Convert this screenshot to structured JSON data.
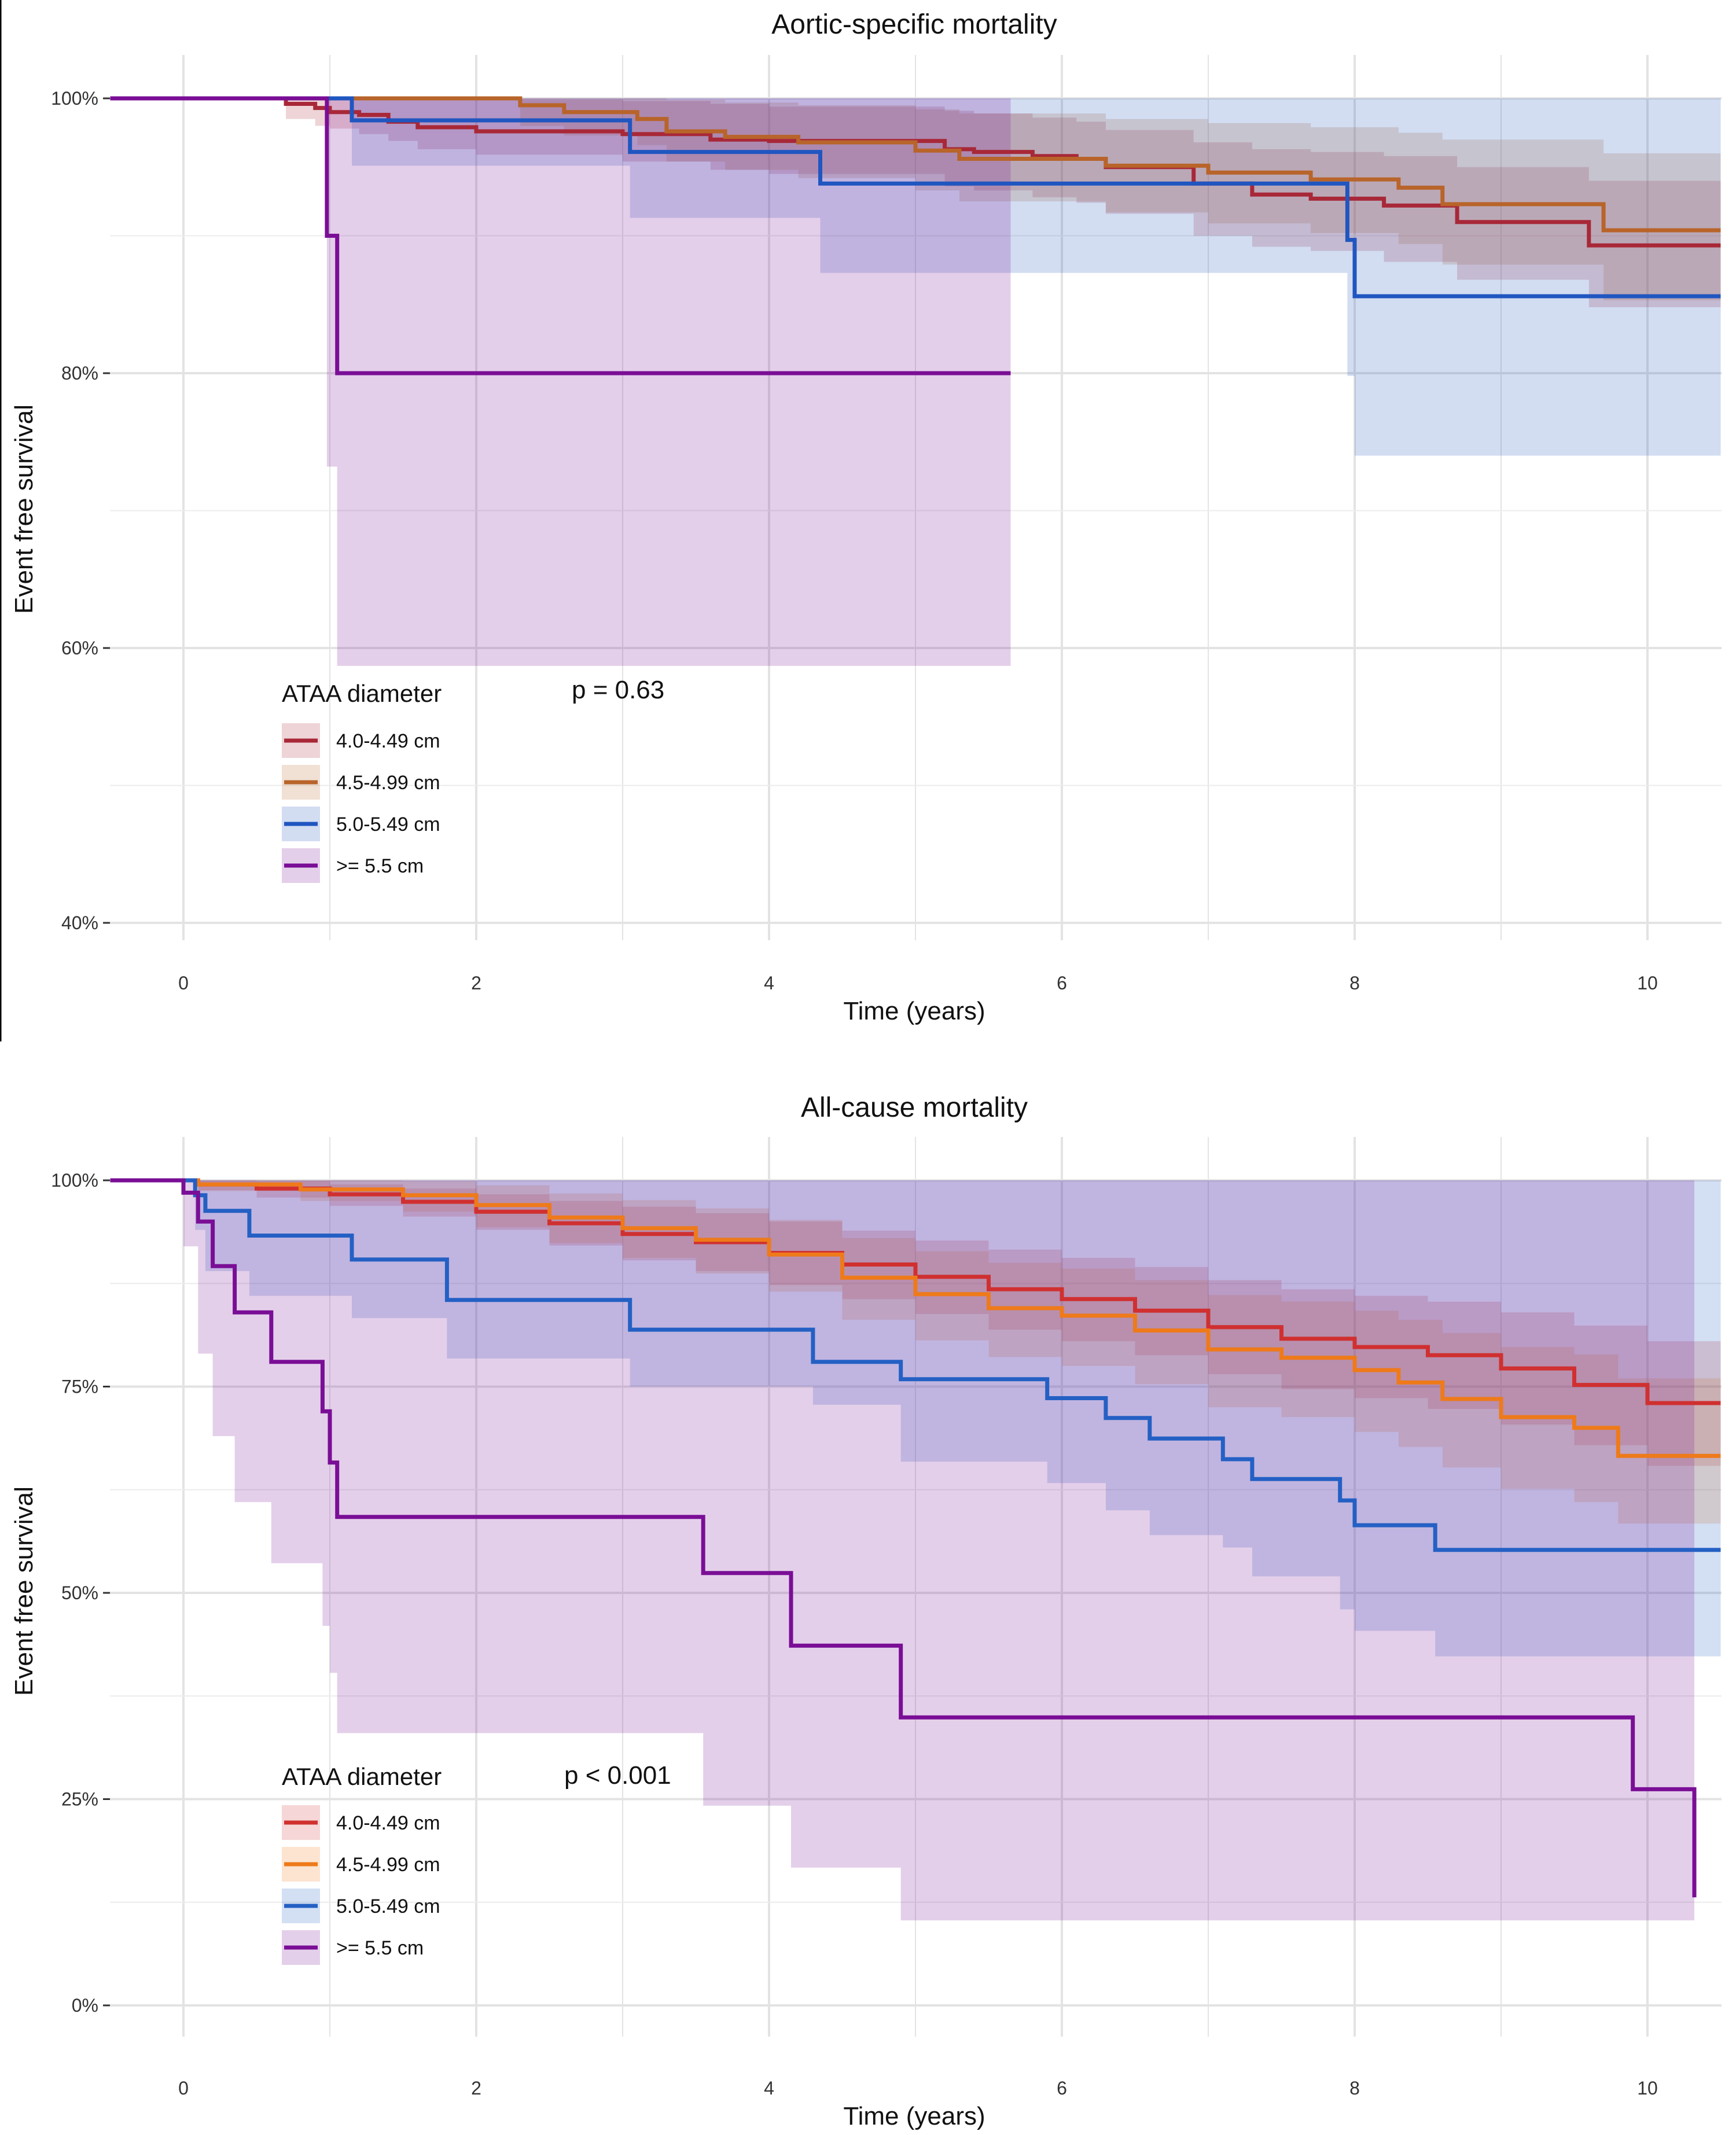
{
  "chart_data": [
    {
      "type": "line",
      "subtype": "kaplan-meier",
      "title": "Aortic-specific mortality",
      "xlabel": "Time (years)",
      "ylabel": "Event free survival",
      "xlim": [
        -0.5,
        10.5
      ],
      "ylim": [
        40,
        100
      ],
      "xticks": [
        0,
        2,
        4,
        6,
        8,
        10
      ],
      "yticks": [
        40,
        60,
        80,
        100
      ],
      "ytick_labels": [
        "40%",
        "60%",
        "80%",
        "100%"
      ],
      "annotation": "p = 0.63",
      "legend_title": "ATAA diameter",
      "legend_position": "bottom-left",
      "series": [
        {
          "name": "4.0-4.49 cm",
          "color": "#a82838",
          "x": [
            -0.5,
            0.6,
            0.7,
            0.9,
            1.0,
            1.2,
            1.4,
            1.6,
            2.0,
            3.0,
            3.6,
            4.0,
            5.2,
            5.4,
            5.8,
            6.1,
            6.3,
            6.9,
            7.3,
            7.7,
            8.2,
            8.7,
            9.6,
            10.5
          ],
          "y": [
            100,
            100,
            99.6,
            99.3,
            99.0,
            98.8,
            98.3,
            97.9,
            97.6,
            97.4,
            97.0,
            96.9,
            96.3,
            96.1,
            95.8,
            95.6,
            95.0,
            93.8,
            93.0,
            92.7,
            92.2,
            91.0,
            89.3,
            89.3
          ],
          "upper": [
            100,
            100,
            100,
            100,
            100,
            100,
            100,
            100,
            99.9,
            99.8,
            99.6,
            99.4,
            99.1,
            98.9,
            98.6,
            98.3,
            97.7,
            96.8,
            96.3,
            96.1,
            95.8,
            95.0,
            94.0,
            94.0
          ],
          "lower": [
            100,
            100,
            98.5,
            98.0,
            97.8,
            97.4,
            96.9,
            96.3,
            95.9,
            95.4,
            94.8,
            94.5,
            93.6,
            93.3,
            92.8,
            92.4,
            91.6,
            90.0,
            89.2,
            88.9,
            88.1,
            86.8,
            84.8,
            84.8
          ]
        },
        {
          "name": "4.5-4.99 cm",
          "color": "#b8642a",
          "x": [
            -0.5,
            1.9,
            2.3,
            2.6,
            3.1,
            3.3,
            3.7,
            4.2,
            5.0,
            5.3,
            6.3,
            7.0,
            7.7,
            8.3,
            8.6,
            9.7,
            10.5
          ],
          "y": [
            100,
            100,
            99.5,
            99.0,
            98.5,
            97.6,
            97.2,
            96.8,
            96.2,
            95.6,
            95.1,
            94.6,
            94.1,
            93.5,
            92.3,
            90.4,
            90.4
          ],
          "upper": [
            100,
            100,
            100,
            100,
            100,
            99.9,
            99.7,
            99.5,
            99.2,
            98.9,
            98.5,
            98.2,
            97.9,
            97.5,
            97.0,
            96.0,
            96.0
          ],
          "lower": [
            100,
            100,
            98.0,
            97.3,
            96.6,
            95.4,
            94.8,
            94.2,
            93.3,
            92.5,
            91.7,
            90.9,
            90.2,
            89.4,
            87.9,
            85.3,
            85.3
          ]
        },
        {
          "name": "5.0-5.49 cm",
          "color": "#2056c0",
          "x": [
            -0.5,
            1.15,
            1.45,
            3.05,
            4.35,
            7.95,
            8.0,
            10.5
          ],
          "y": [
            100,
            98.4,
            98.4,
            96.1,
            93.8,
            89.7,
            85.6,
            85.6
          ],
          "upper": [
            100,
            100,
            100,
            100,
            100,
            100,
            100,
            99.2
          ],
          "lower": [
            100,
            95.1,
            95.1,
            91.3,
            87.3,
            79.8,
            74.0,
            74.0
          ]
        },
        {
          "name": ">= 5.5 cm",
          "color": "#7a0e96",
          "x": [
            -0.5,
            0.98,
            1.05,
            5.65
          ],
          "y": [
            100,
            90.0,
            80.0,
            80.0
          ],
          "upper": [
            100,
            100,
            100,
            100
          ],
          "lower": [
            100,
            73.2,
            58.7,
            58.7
          ]
        }
      ]
    },
    {
      "type": "line",
      "subtype": "kaplan-meier",
      "title": "All-cause mortality",
      "xlabel": "Time (years)",
      "ylabel": "Event free survival",
      "xlim": [
        -0.5,
        10.5
      ],
      "ylim": [
        0,
        100
      ],
      "xticks": [
        0,
        2,
        4,
        6,
        8,
        10
      ],
      "yticks": [
        0,
        25,
        50,
        75,
        100
      ],
      "ytick_labels": [
        "0%",
        "25%",
        "50%",
        "75%",
        "100%"
      ],
      "annotation": "p < 0.001",
      "legend_title": "ATAA diameter",
      "legend_position": "bottom-left",
      "series": [
        {
          "name": "4.0-4.49 cm",
          "color": "#d03030",
          "x": [
            -0.5,
            0.1,
            0.5,
            1.0,
            1.5,
            2.0,
            2.5,
            3.0,
            3.5,
            4.0,
            4.5,
            5.0,
            5.5,
            6.0,
            6.5,
            7.0,
            7.5,
            8.0,
            8.5,
            9.0,
            9.5,
            10.0,
            10.5
          ],
          "y": [
            100,
            99.5,
            99.0,
            98.3,
            97.4,
            96.2,
            94.8,
            93.5,
            92.5,
            91.2,
            89.8,
            88.3,
            86.8,
            85.6,
            84.2,
            82.2,
            80.8,
            79.8,
            78.8,
            77.2,
            75.2,
            73.0,
            73.0
          ],
          "upper": [
            100,
            100,
            99.9,
            99.5,
            99.0,
            98.3,
            97.5,
            96.8,
            96.0,
            95.0,
            93.9,
            92.7,
            91.6,
            90.6,
            89.5,
            87.9,
            86.8,
            86.0,
            85.3,
            84.0,
            82.4,
            80.5,
            80.5
          ],
          "lower": [
            100,
            98.8,
            97.9,
            96.9,
            95.6,
            94.0,
            92.1,
            90.3,
            89.0,
            87.3,
            85.6,
            83.8,
            81.9,
            80.5,
            78.8,
            76.5,
            74.7,
            73.6,
            72.3,
            70.4,
            67.9,
            65.4,
            65.4
          ]
        },
        {
          "name": "4.5-4.99 cm",
          "color": "#ee7a1a",
          "x": [
            -0.5,
            0.1,
            0.8,
            1.5,
            2.0,
            2.5,
            3.0,
            3.5,
            4.0,
            4.5,
            5.0,
            5.5,
            6.0,
            6.5,
            7.0,
            7.5,
            8.0,
            8.3,
            8.6,
            9.0,
            9.5,
            9.8,
            10.5
          ],
          "y": [
            100,
            99.5,
            98.9,
            98.2,
            97.0,
            95.5,
            94.2,
            92.8,
            91.0,
            88.2,
            86.2,
            84.5,
            83.6,
            81.8,
            79.5,
            78.5,
            77.0,
            75.5,
            73.5,
            71.3,
            70.0,
            66.6,
            66.6
          ],
          "upper": [
            100,
            100,
            100,
            99.9,
            99.4,
            98.4,
            97.6,
            96.6,
            95.2,
            93.0,
            91.4,
            90.0,
            89.3,
            87.9,
            86.1,
            85.3,
            84.2,
            83.1,
            81.5,
            79.8,
            78.9,
            76.0,
            76.0
          ],
          "lower": [
            100,
            98.7,
            97.5,
            96.2,
            94.3,
            92.4,
            90.6,
            88.7,
            86.5,
            83.1,
            80.6,
            78.6,
            77.5,
            75.3,
            72.5,
            71.3,
            69.5,
            67.7,
            65.2,
            62.6,
            61.0,
            58.4,
            58.4
          ]
        },
        {
          "name": "5.0-5.49 cm",
          "color": "#2460c4",
          "x": [
            -0.5,
            0.08,
            0.15,
            0.45,
            1.15,
            1.8,
            3.05,
            4.3,
            4.9,
            5.9,
            6.3,
            6.6,
            7.1,
            7.3,
            7.9,
            8.0,
            8.55,
            10.5
          ],
          "y": [
            100,
            98.2,
            96.3,
            93.3,
            90.4,
            85.5,
            81.9,
            78.0,
            75.9,
            73.6,
            71.2,
            68.7,
            66.2,
            63.8,
            61.2,
            58.2,
            55.2,
            55.2
          ],
          "upper": [
            100,
            100,
            100,
            100,
            100,
            100,
            100,
            100,
            100,
            100,
            100,
            100,
            100,
            100,
            100,
            100,
            100,
            100
          ],
          "lower": [
            100,
            94.0,
            89.0,
            86.0,
            83.3,
            78.4,
            75.0,
            72.8,
            65.9,
            63.3,
            60.0,
            57.0,
            55.5,
            52.0,
            48.0,
            45.4,
            42.3,
            42.3
          ]
        },
        {
          "name": ">= 5.5 cm",
          "color": "#7a0e96",
          "x": [
            -0.5,
            0.0,
            0.1,
            0.2,
            0.35,
            0.6,
            0.95,
            1.0,
            1.05,
            3.55,
            4.15,
            4.9,
            9.9,
            10.32
          ],
          "y": [
            100,
            98.5,
            95.0,
            89.6,
            84.0,
            78.0,
            72.0,
            65.8,
            59.2,
            52.4,
            43.6,
            34.9,
            26.2,
            13.1
          ],
          "upper": [
            100,
            100,
            100,
            100,
            100,
            100,
            100,
            100,
            100,
            100,
            100,
            100,
            100,
            69.8
          ],
          "lower": [
            100,
            92.0,
            79.0,
            69.0,
            61.0,
            53.6,
            46.0,
            40.3,
            33.0,
            24.2,
            16.7,
            10.3,
            10.3,
            2.5
          ]
        }
      ]
    }
  ]
}
